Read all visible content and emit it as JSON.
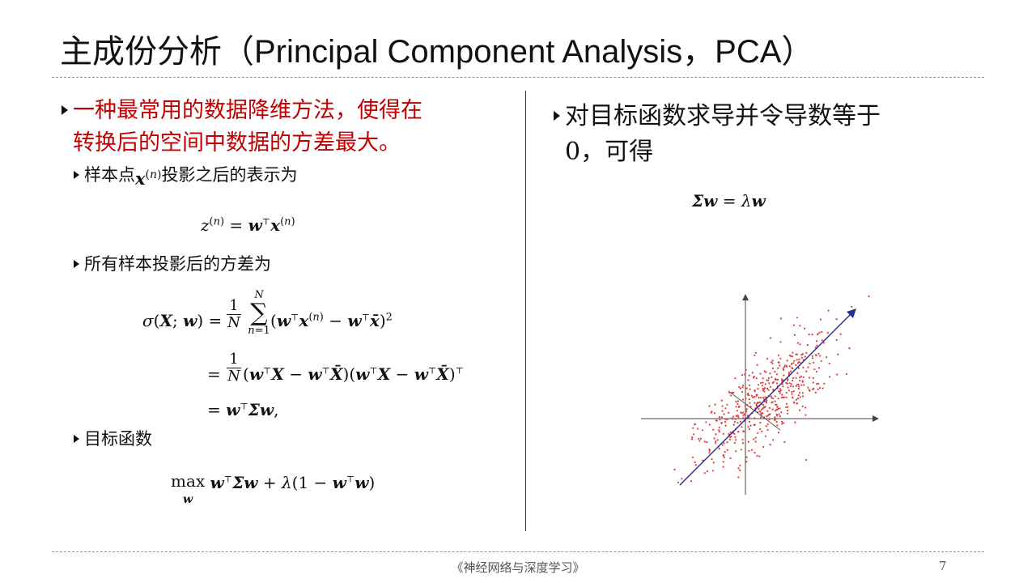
{
  "slide": {
    "title_cn": "主成份分析",
    "title_en": "（Principal Component Analysis，PCA）",
    "page_number": "7",
    "footer": "《神经网络与深度学习》"
  },
  "left": {
    "bullet1_line1": "一种最常用的数据降维方法，使得在",
    "bullet1_line2": "转换后的空间中数据的方差最大。",
    "sub1_pre": "样本点",
    "sub1_post": "投影之后的表示为",
    "sub2": "所有样本投影后的方差为",
    "sub3": "目标函数"
  },
  "right": {
    "bullet_line1": "对目标函数求导并令导数等于",
    "bullet_line2": "0，可得"
  },
  "colors": {
    "accent_red": "#c00000",
    "rule": "#c58b3c",
    "points": "#e23b3b",
    "arrow": "#2b2f8f"
  }
}
